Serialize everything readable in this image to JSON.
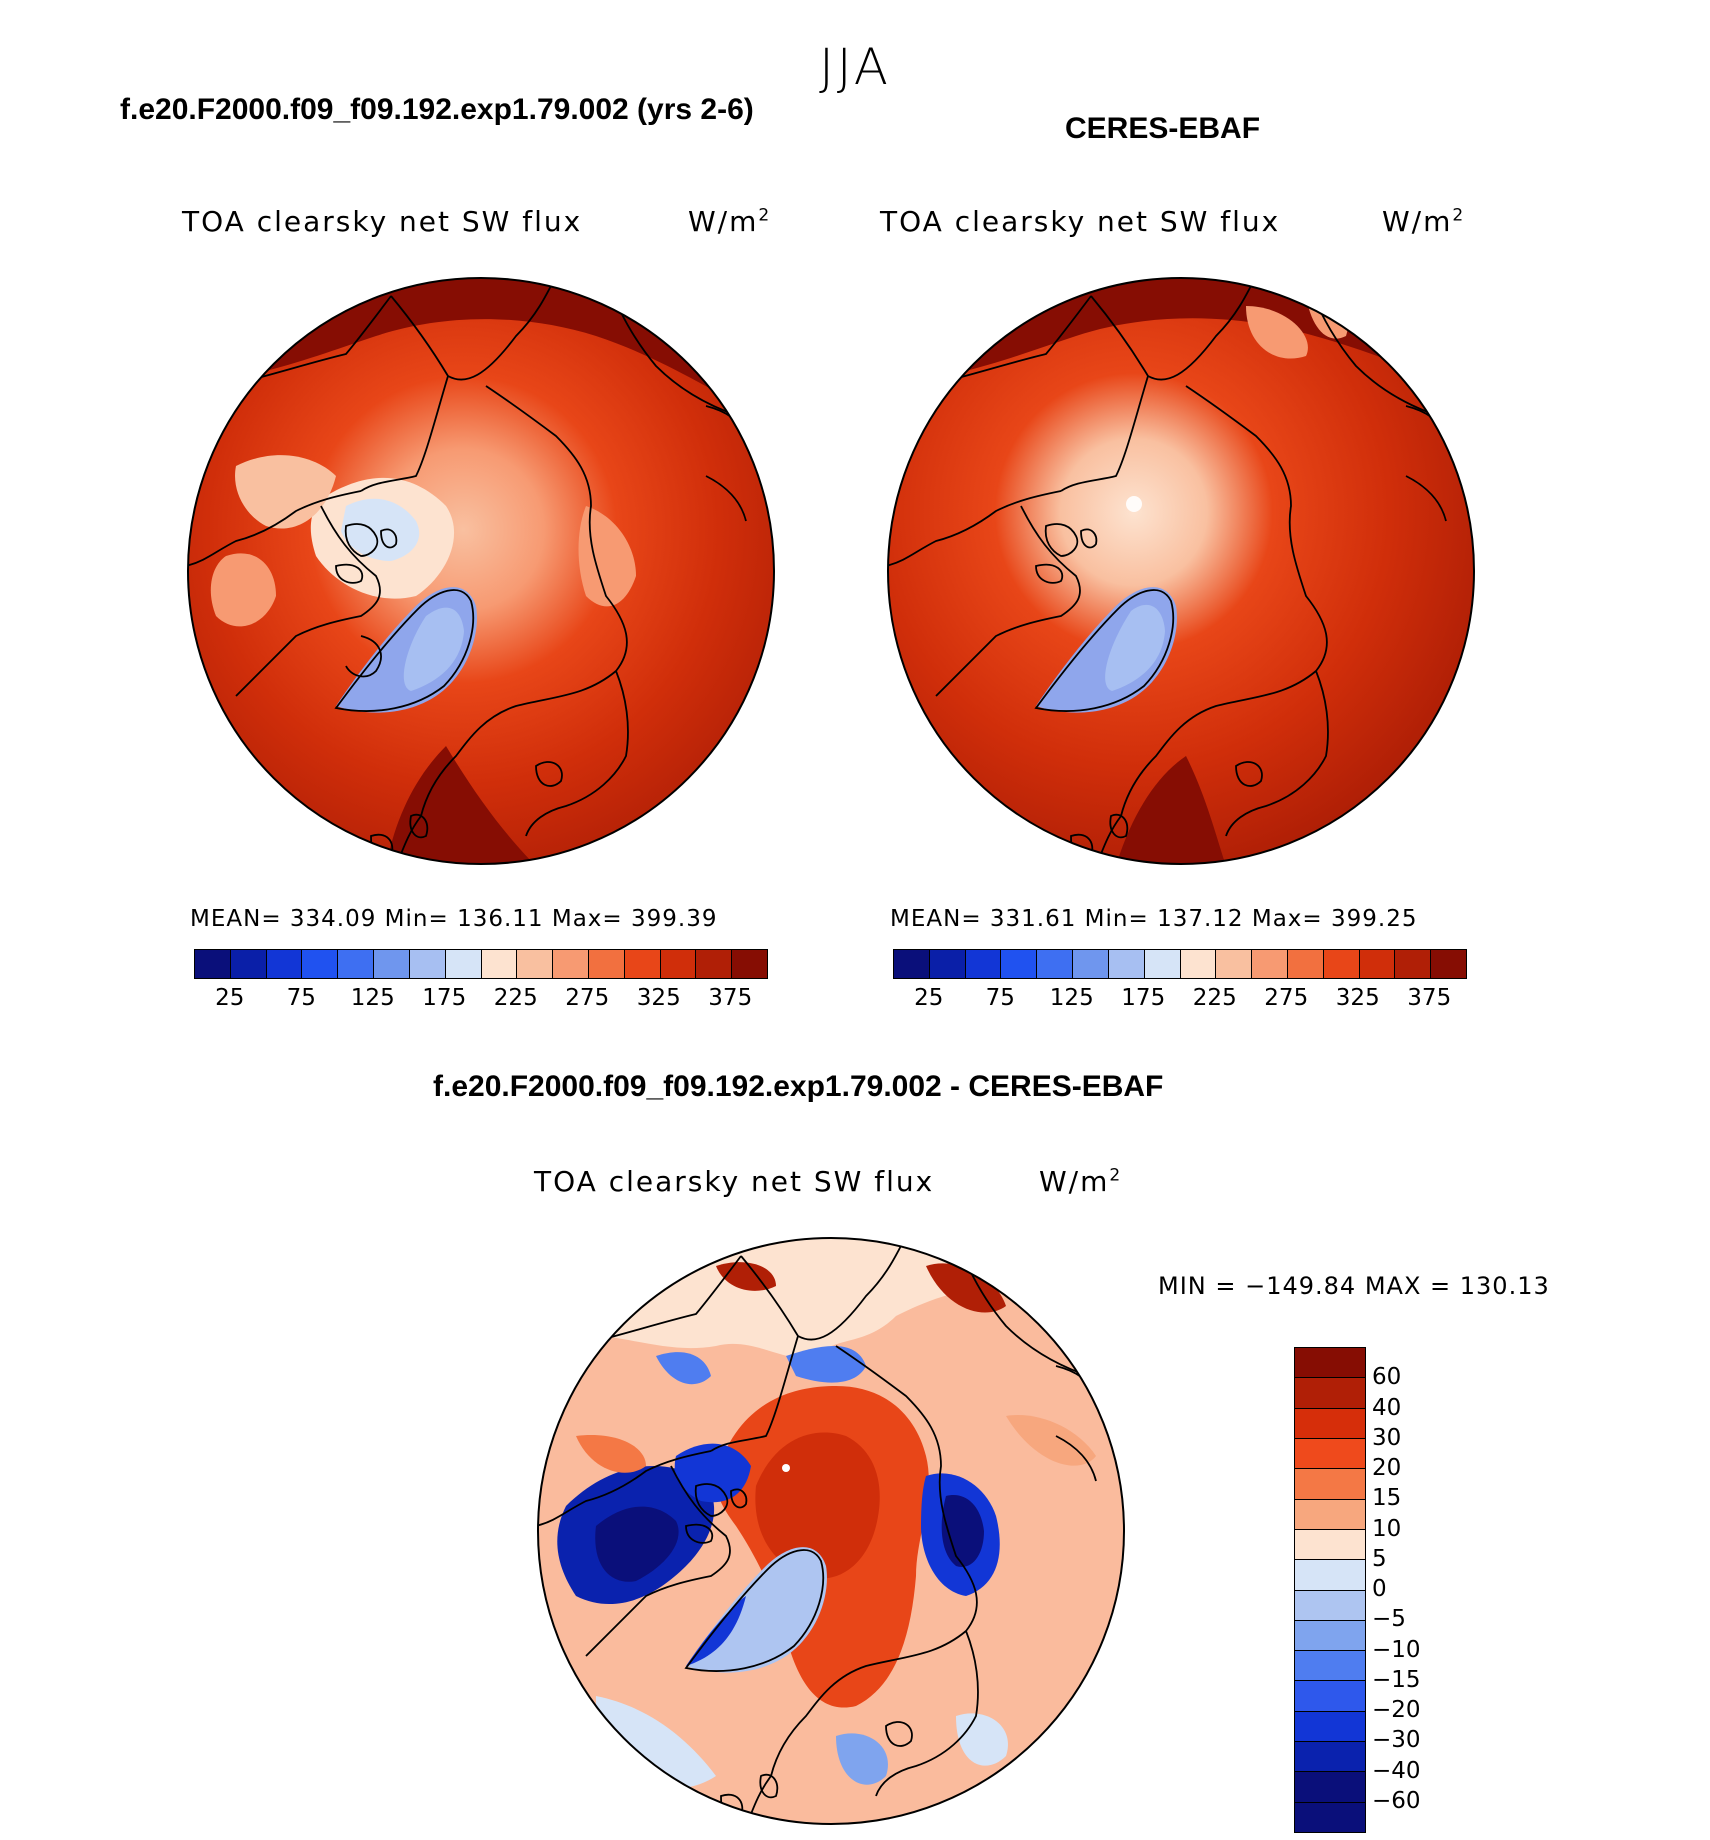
{
  "season": "JJA",
  "panels": [
    {
      "title": "f.e20.F2000.f09_f09.192.exp1.79.002 (yrs 2-6)",
      "variable": "TOA clearsky net SW flux",
      "units": "W/m",
      "units_sup": "2",
      "stats": "MEAN= 334.09   Min= 136.11   Max= 399.39"
    },
    {
      "title": "CERES-EBAF",
      "variable": "TOA clearsky net SW flux",
      "units": "W/m",
      "units_sup": "2",
      "stats": "MEAN= 331.61   Min= 137.12   Max= 399.25"
    }
  ],
  "diff_panel": {
    "title": "f.e20.F2000.f09_f09.192.exp1.79.002 - CERES-EBAF",
    "variable": "TOA clearsky net SW flux",
    "units": "W/m",
    "units_sup": "2",
    "stats": "MIN = −149.84 MAX = 130.13"
  },
  "abs_colorbar": {
    "colors": [
      "#0a0f7a",
      "#0a1fa8",
      "#1236d6",
      "#2052f0",
      "#3e6ff2",
      "#6f96ee",
      "#a7bff2",
      "#d6e4f7",
      "#fde3d0",
      "#f9c0a0",
      "#f79a72",
      "#f2703f",
      "#e84618",
      "#d02e0a",
      "#b01f06",
      "#860d03"
    ],
    "labels": [
      "25",
      "75",
      "125",
      "175",
      "225",
      "275",
      "325",
      "375"
    ]
  },
  "diff_colorbar": {
    "colors": [
      "#860d03",
      "#b01f06",
      "#d62e0a",
      "#ef4a1c",
      "#f47845",
      "#f7a77e",
      "#fde3d0",
      "#d6e4f7",
      "#aec5f1",
      "#7fa4ee",
      "#4f7df0",
      "#2e58ec",
      "#1236d6",
      "#0a22ae",
      "#0a0f7a"
    ],
    "labels": [
      "60",
      "40",
      "30",
      "20",
      "15",
      "10",
      "5",
      "0",
      "−5",
      "−10",
      "−15",
      "−20",
      "−30",
      "−40",
      "−60"
    ]
  }
}
